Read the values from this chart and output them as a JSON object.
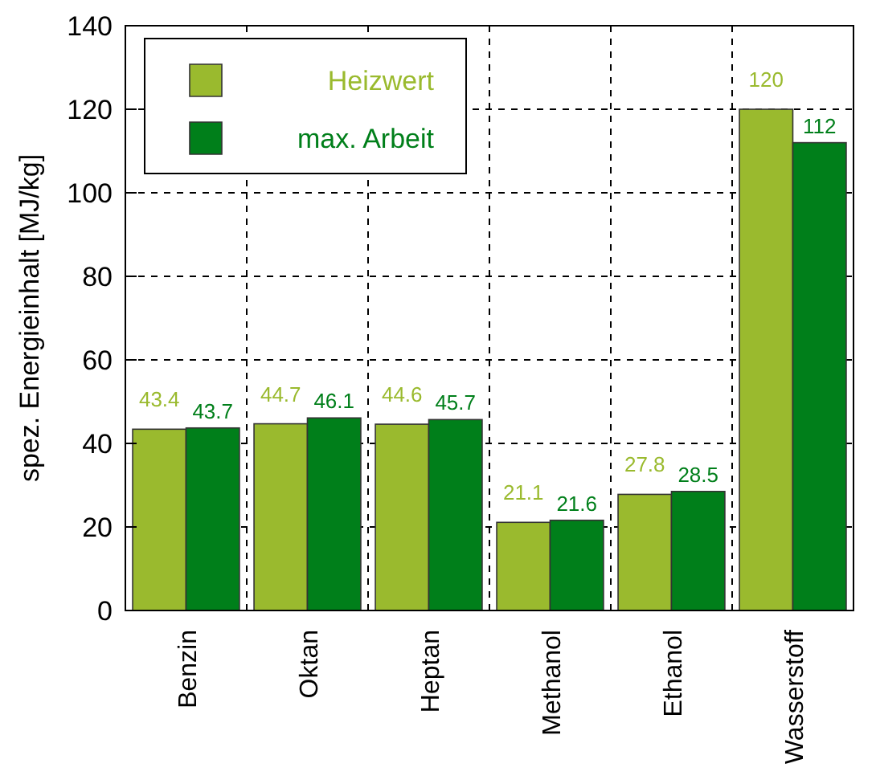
{
  "chart_data": {
    "type": "bar",
    "ylabel": "spez. Energieinhalt [MJ/kg]",
    "categories": [
      "Benzin",
      "Oktan",
      "Heptan",
      "Methanol",
      "Ethanol",
      "Wasserstoff"
    ],
    "series": [
      {
        "name": "Heizwert",
        "color": "#9aba2e",
        "values": [
          43.4,
          44.7,
          44.6,
          21.1,
          27.8,
          120
        ]
      },
      {
        "name": "max. Arbeit",
        "color": "#007f1a",
        "values": [
          43.7,
          46.1,
          45.7,
          21.6,
          28.5,
          112
        ]
      }
    ],
    "ylim": [
      0,
      140
    ],
    "yticks": [
      0,
      20,
      40,
      60,
      80,
      100,
      120,
      140
    ],
    "grid": true,
    "legend": "top left",
    "data_labels": true
  }
}
